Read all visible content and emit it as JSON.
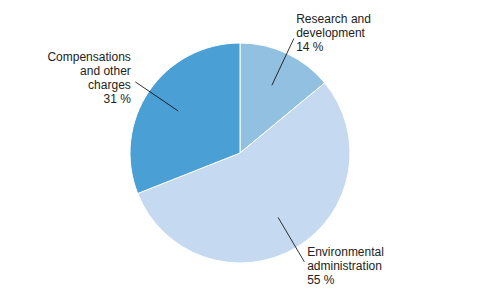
{
  "chart_data": {
    "type": "pie",
    "categories": [
      "Research and\ndevelopment",
      "Environmental\nadministration",
      "Compensations\nand other\ncharges"
    ],
    "values": [
      14,
      55,
      31
    ],
    "value_labels": [
      "14 %",
      "55 %",
      "31 %"
    ],
    "data_labels": true,
    "colors": [
      "#92c0e0",
      "#c5d9f0",
      "#4a9fd4"
    ]
  }
}
